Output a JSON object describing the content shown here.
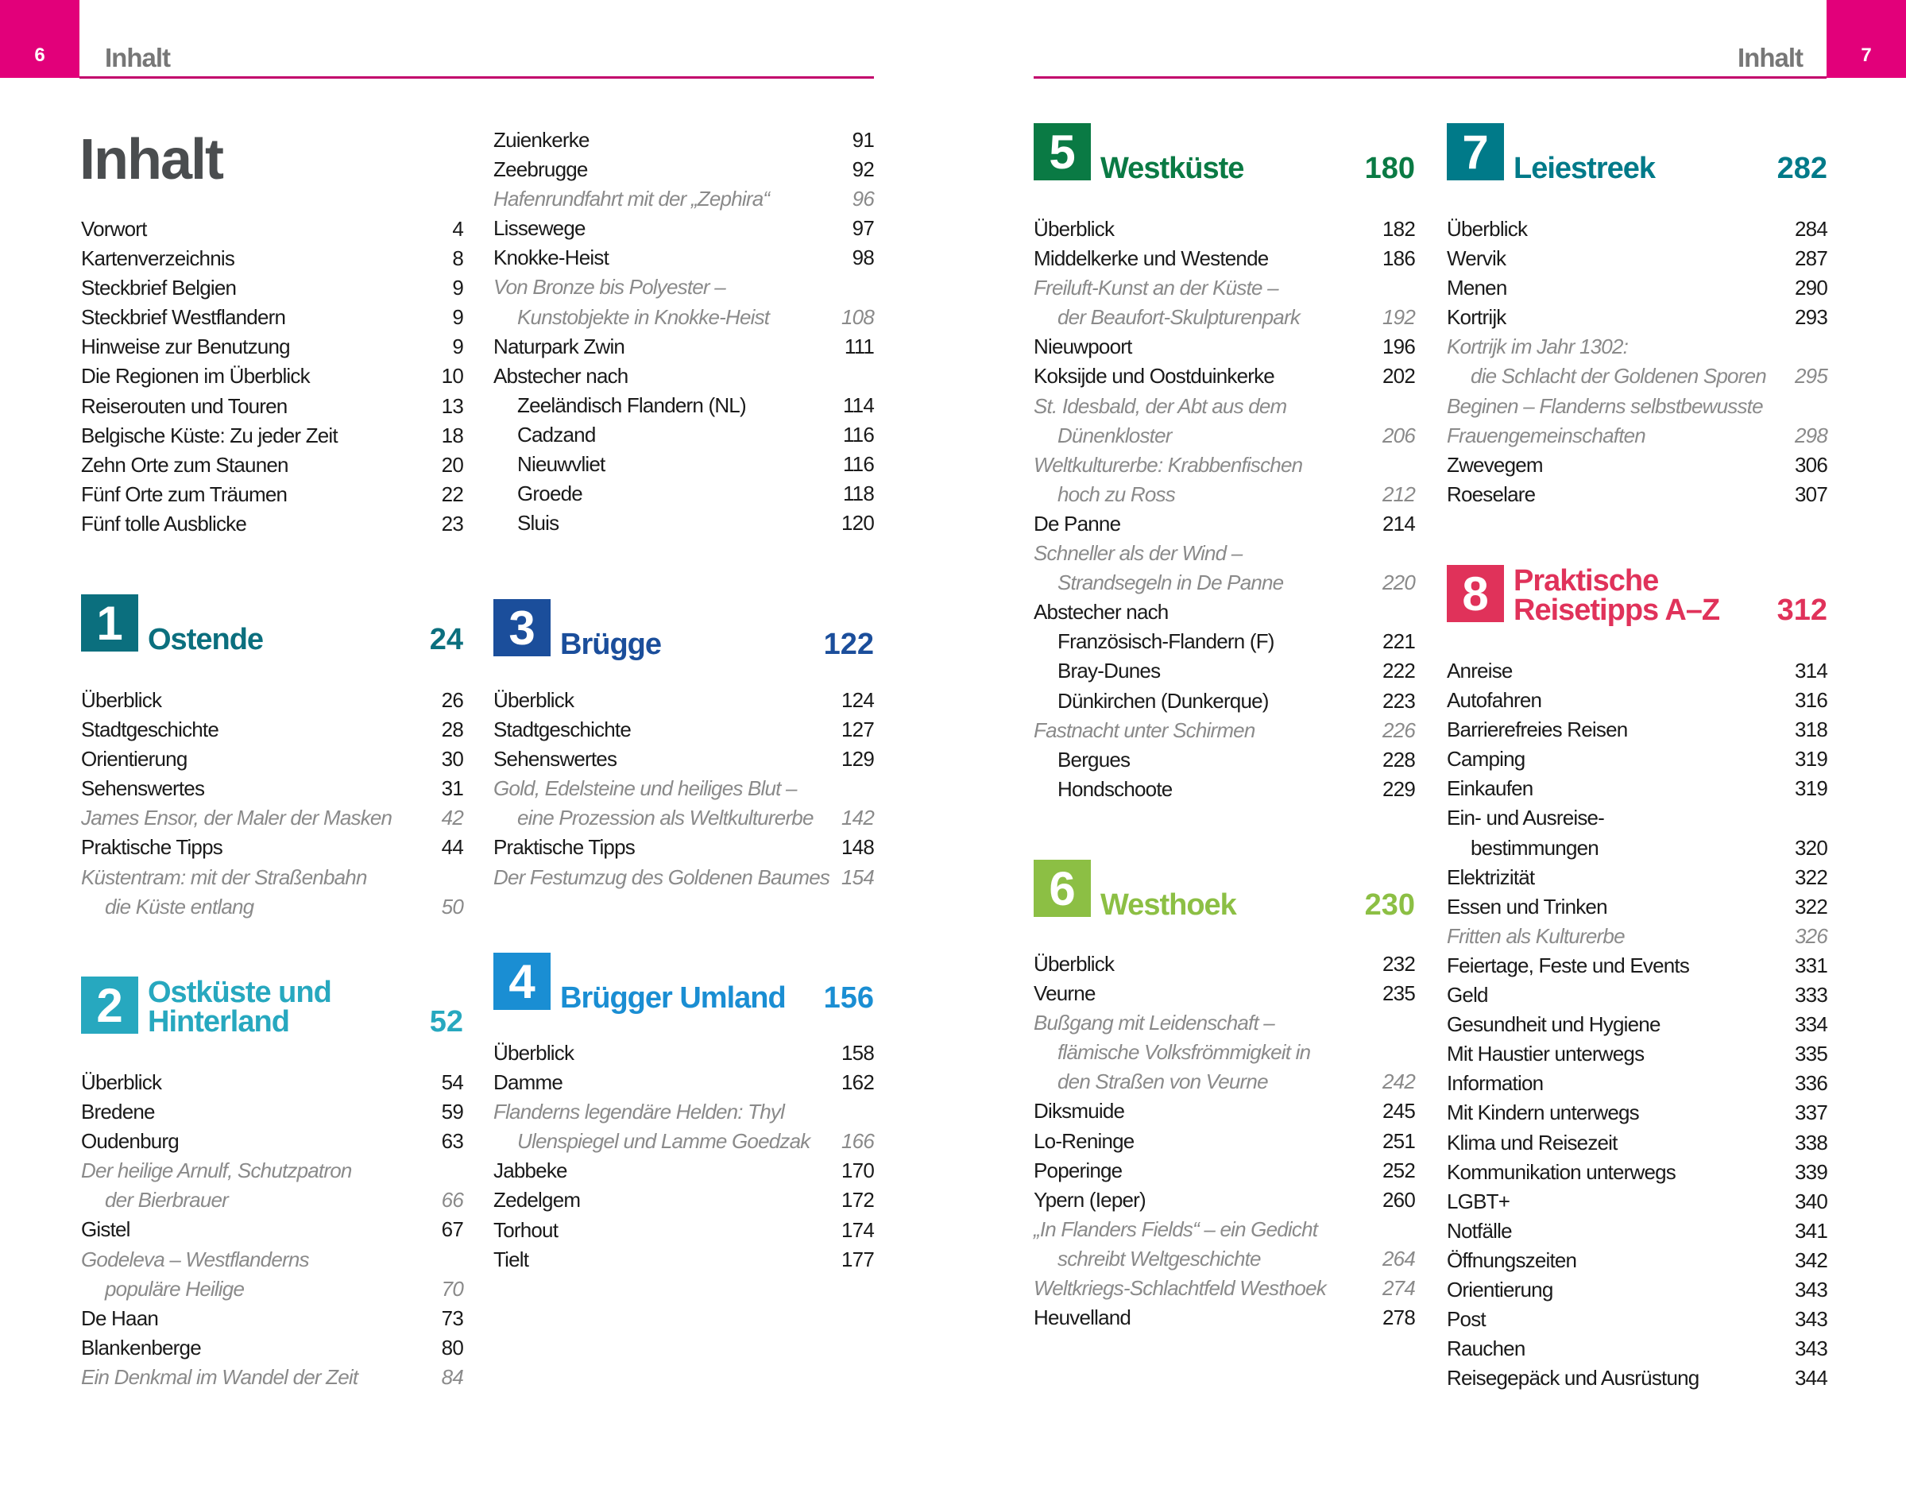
{
  "header": {
    "left_page": "6",
    "left_title": "Inhalt",
    "right_page": "7",
    "right_title": "Inhalt",
    "accent": "#e2007a"
  },
  "title": "Inhalt",
  "columns": [
    {
      "intro": [
        {
          "t": "Vorwort",
          "p": "4"
        },
        {
          "t": "Kartenverzeichnis",
          "p": "8"
        },
        {
          "t": "Steckbrief Belgien",
          "p": "9"
        },
        {
          "t": "Steckbrief Westflandern",
          "p": "9"
        },
        {
          "t": "Hinweise zur Benutzung",
          "p": "9"
        },
        {
          "t": "Die Regionen im Überblick",
          "p": "10"
        },
        {
          "t": "Reiserouten und Touren",
          "p": "13"
        },
        {
          "t": "Belgische Küste: Zu jeder Zeit",
          "p": "18"
        },
        {
          "t": "Zehn Orte zum Staunen",
          "p": "20"
        },
        {
          "t": "Fünf Orte zum Träumen",
          "p": "22"
        },
        {
          "t": "Fünf tolle Ausblicke",
          "p": "23"
        }
      ]
    }
  ],
  "sections": [
    {
      "num": "1",
      "name": "Ostende",
      "page": "24",
      "color": "#0b6f7e",
      "entries": [
        {
          "t": "Überblick",
          "p": "26"
        },
        {
          "t": "Stadtgeschichte",
          "p": "28"
        },
        {
          "t": "Orientierung",
          "p": "30"
        },
        {
          "t": "Sehenswertes",
          "p": "31"
        },
        {
          "t": "James Ensor, der Maler der Masken",
          "p": "42",
          "i": true
        },
        {
          "t": "Praktische Tipps",
          "p": "44"
        },
        {
          "t": "Küstentram: mit der Straßenbahn",
          "p": "",
          "i": true
        },
        {
          "t": "die Küste entlang",
          "p": "50",
          "i": true,
          "n": true
        }
      ]
    },
    {
      "num": "2",
      "name": "Ostküste und\nHinterland",
      "page": "52",
      "color": "#27a8bf",
      "entries": [
        {
          "t": "Überblick",
          "p": "54"
        },
        {
          "t": "Bredene",
          "p": "59"
        },
        {
          "t": "Oudenburg",
          "p": "63"
        },
        {
          "t": "Der heilige Arnulf, Schutzpatron",
          "p": "",
          "i": true
        },
        {
          "t": "der Bierbrauer",
          "p": "66",
          "i": true,
          "n": true
        },
        {
          "t": "Gistel",
          "p": "67"
        },
        {
          "t": "Godeleva – Westflanderns",
          "p": "",
          "i": true
        },
        {
          "t": "populäre Heilige",
          "p": "70",
          "i": true,
          "n": true
        },
        {
          "t": "De Haan",
          "p": "73"
        },
        {
          "t": "Blankenberge",
          "p": "80"
        },
        {
          "t": "Ein Denkmal im Wandel der Zeit",
          "p": "84",
          "i": true
        }
      ]
    },
    {
      "num": "",
      "name": "",
      "page": "",
      "color": "",
      "entries": [
        {
          "t": "Zuienkerke",
          "p": "91"
        },
        {
          "t": "Zeebrugge",
          "p": "92"
        },
        {
          "t": "Hafenrundfahrt mit der „Zephira“",
          "p": "96",
          "i": true
        },
        {
          "t": "Lissewege",
          "p": "97"
        },
        {
          "t": "Knokke-Heist",
          "p": "98"
        },
        {
          "t": "Von Bronze bis Polyester –",
          "p": "",
          "i": true
        },
        {
          "t": "Kunstobjekte in Knokke-Heist",
          "p": "108",
          "i": true,
          "n": true
        },
        {
          "t": "Naturpark Zwin",
          "p": "111"
        },
        {
          "t": "Abstecher nach",
          "p": ""
        },
        {
          "t": "Zeeländisch Flandern (NL)",
          "p": "114",
          "n": true
        },
        {
          "t": "Cadzand",
          "p": "116",
          "n": true
        },
        {
          "t": "Nieuwvliet",
          "p": "116",
          "n": true
        },
        {
          "t": "Groede",
          "p": "118",
          "n": true
        },
        {
          "t": "Sluis",
          "p": "120",
          "n": true
        }
      ]
    },
    {
      "num": "3",
      "name": "Brügge",
      "page": "122",
      "color": "#1b4e9b",
      "entries": [
        {
          "t": "Überblick",
          "p": "124"
        },
        {
          "t": "Stadtgeschichte",
          "p": "127"
        },
        {
          "t": "Sehenswertes",
          "p": "129"
        },
        {
          "t": "Gold, Edelsteine und heiliges Blut –",
          "p": "",
          "i": true
        },
        {
          "t": "eine Prozession als Weltkulturerbe",
          "p": "142",
          "i": true,
          "n": true
        },
        {
          "t": "Praktische Tipps",
          "p": "148"
        },
        {
          "t": "Der Festumzug des Goldenen Baumes",
          "p": "154",
          "i": true
        }
      ]
    },
    {
      "num": "4",
      "name": "Brügger Umland",
      "page": "156",
      "color": "#1a8ed3",
      "entries": [
        {
          "t": "Überblick",
          "p": "158"
        },
        {
          "t": "Damme",
          "p": "162"
        },
        {
          "t": "Flanderns legendäre Helden: Thyl",
          "p": "",
          "i": true
        },
        {
          "t": "Ulenspiegel und Lamme Goedzak",
          "p": "166",
          "i": true,
          "n": true
        },
        {
          "t": "Jabbeke",
          "p": "170"
        },
        {
          "t": "Zedelgem",
          "p": "172"
        },
        {
          "t": "Torhout",
          "p": "174"
        },
        {
          "t": "Tielt",
          "p": "177"
        }
      ]
    },
    {
      "num": "5",
      "name": "Westküste",
      "page": "180",
      "color": "#0a7a44",
      "entries": [
        {
          "t": "Überblick",
          "p": "182"
        },
        {
          "t": "Middelkerke und Westende",
          "p": "186"
        },
        {
          "t": "Freiluft-Kunst an der Küste –",
          "p": "",
          "i": true
        },
        {
          "t": "der Beaufort-Skulpturenpark",
          "p": "192",
          "i": true,
          "n": true
        },
        {
          "t": "Nieuwpoort",
          "p": "196"
        },
        {
          "t": "Koksijde und Oostduinkerke",
          "p": "202"
        },
        {
          "t": "St. Idesbald, der Abt aus dem",
          "p": "",
          "i": true
        },
        {
          "t": "Dünenkloster",
          "p": "206",
          "i": true,
          "n": true
        },
        {
          "t": "Weltkulturerbe: Krabbenfischen",
          "p": "",
          "i": true
        },
        {
          "t": "hoch zu Ross",
          "p": "212",
          "i": true,
          "n": true
        },
        {
          "t": "De Panne",
          "p": "214"
        },
        {
          "t": "Schneller als der Wind –",
          "p": "",
          "i": true
        },
        {
          "t": "Strandsegeln in De Panne",
          "p": "220",
          "i": true,
          "n": true
        },
        {
          "t": "Abstecher nach",
          "p": ""
        },
        {
          "t": "Französisch-Flandern (F)",
          "p": "221",
          "n": true
        },
        {
          "t": "Bray-Dunes",
          "p": "222",
          "n": true
        },
        {
          "t": "Dünkirchen (Dunkerque)",
          "p": "223",
          "n": true
        },
        {
          "t": "Fastnacht unter Schirmen",
          "p": "226",
          "i": true
        },
        {
          "t": "Bergues",
          "p": "228",
          "n": true
        },
        {
          "t": "Hondschoote",
          "p": "229",
          "n": true
        }
      ]
    },
    {
      "num": "6",
      "name": "Westhoek",
      "page": "230",
      "color": "#8cbf44",
      "entries": [
        {
          "t": "Überblick",
          "p": "232"
        },
        {
          "t": "Veurne",
          "p": "235"
        },
        {
          "t": "Bußgang mit Leidenschaft –",
          "p": "",
          "i": true
        },
        {
          "t": "flämische Volksfrömmigkeit in",
          "p": "",
          "i": true,
          "n": true
        },
        {
          "t": "den Straßen von Veurne",
          "p": "242",
          "i": true,
          "n": true
        },
        {
          "t": "Diksmuide",
          "p": "245"
        },
        {
          "t": "Lo-Reninge",
          "p": "251"
        },
        {
          "t": "Poperinge",
          "p": "252"
        },
        {
          "t": "Ypern (Ieper)",
          "p": "260"
        },
        {
          "t": "„In Flanders Fields“ – ein Gedicht",
          "p": "",
          "i": true
        },
        {
          "t": "schreibt Weltgeschichte",
          "p": "264",
          "i": true,
          "n": true
        },
        {
          "t": "Weltkriegs-Schlachtfeld Westhoek",
          "p": "274",
          "i": true
        },
        {
          "t": "Heuvelland",
          "p": "278"
        }
      ]
    },
    {
      "num": "7",
      "name": "Leiestreek",
      "page": "282",
      "color": "#007a89",
      "entries": [
        {
          "t": "Überblick",
          "p": "284"
        },
        {
          "t": "Wervik",
          "p": "287"
        },
        {
          "t": "Menen",
          "p": "290"
        },
        {
          "t": "Kortrijk",
          "p": "293"
        },
        {
          "t": "Kortrijk im Jahr 1302:",
          "p": "",
          "i": true
        },
        {
          "t": "die Schlacht der Goldenen Sporen",
          "p": "295",
          "i": true,
          "n": true
        },
        {
          "t": "Beginen – Flanderns selbstbewusste",
          "p": "",
          "i": true
        },
        {
          "t": "Frauengemeinschaften",
          "p": "298",
          "i": true
        },
        {
          "t": "Zwevegem",
          "p": "306"
        },
        {
          "t": "Roeselare",
          "p": "307"
        }
      ]
    },
    {
      "num": "8",
      "name": "Praktische\nReisetipps A–Z",
      "page": "312",
      "color": "#e0325a",
      "entries": [
        {
          "t": "Anreise",
          "p": "314"
        },
        {
          "t": "Autofahren",
          "p": "316"
        },
        {
          "t": "Barrierefreies Reisen",
          "p": "318"
        },
        {
          "t": "Camping",
          "p": "319"
        },
        {
          "t": "Einkaufen",
          "p": "319"
        },
        {
          "t": "Ein- und Ausreise-",
          "p": ""
        },
        {
          "t": "bestimmungen",
          "p": "320",
          "n": true
        },
        {
          "t": "Elektrizität",
          "p": "322"
        },
        {
          "t": "Essen und Trinken",
          "p": "322"
        },
        {
          "t": "Fritten als Kulturerbe",
          "p": "326",
          "i": true
        },
        {
          "t": "Feiertage, Feste und Events",
          "p": "331"
        },
        {
          "t": "Geld",
          "p": "333"
        },
        {
          "t": "Gesundheit und Hygiene",
          "p": "334"
        },
        {
          "t": "Mit Haustier unterwegs",
          "p": "335"
        },
        {
          "t": "Information",
          "p": "336"
        },
        {
          "t": "Mit Kindern unterwegs",
          "p": "337"
        },
        {
          "t": "Klima und Reisezeit",
          "p": "338"
        },
        {
          "t": "Kommunikation unterwegs",
          "p": "339"
        },
        {
          "t": "LGBT+",
          "p": "340"
        },
        {
          "t": "Notfälle",
          "p": "341"
        },
        {
          "t": "Öffnungszeiten",
          "p": "342"
        },
        {
          "t": "Orientierung",
          "p": "343"
        },
        {
          "t": "Post",
          "p": "343"
        },
        {
          "t": "Rauchen",
          "p": "343"
        },
        {
          "t": "Reisegepäck und Ausrüstung",
          "p": "344"
        }
      ]
    }
  ]
}
